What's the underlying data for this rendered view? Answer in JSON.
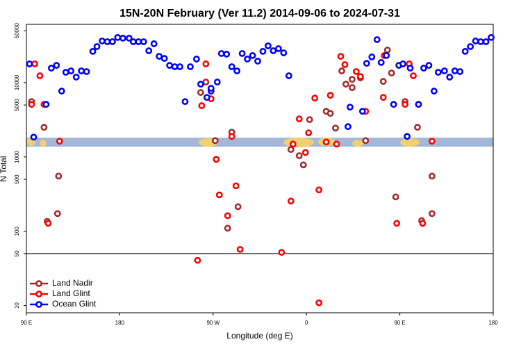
{
  "chart_data": {
    "type": "scatter",
    "title": "15N-20N February (Ver 11.2)   2014-09-06 to 2024-07-31",
    "xlabel": "Longitude (deg E)",
    "ylabel": "N Total",
    "log_y": true,
    "legend": "bottom-left",
    "hline": 50,
    "xlim": [
      90,
      540
    ],
    "xticks": [
      {
        "value": 90,
        "label": "90 E"
      },
      180,
      {
        "value": 270,
        "label": "90 W"
      },
      {
        "value": 360,
        "label": "0"
      },
      {
        "value": 450,
        "label": "90 E"
      },
      {
        "value": 540,
        "label": "180"
      }
    ],
    "ylim": [
      8,
      61000
    ],
    "yticks": [
      10,
      50,
      100,
      500,
      1000,
      5000,
      10000,
      50000
    ],
    "series": [
      {
        "name": "Land Nadir",
        "color": "#a52a2a",
        "x": [
          95,
          107,
          110,
          120,
          121,
          258,
          263,
          268,
          272,
          288,
          284,
          294,
          345,
          353,
          357,
          363,
          379,
          383,
          388,
          394,
          398,
          404,
          404,
          412,
          417,
          434,
          438,
          442,
          446,
          455,
          467,
          471,
          481,
          481
        ],
        "values": [
          5570,
          2510,
          136,
          173,
          553,
          7380,
          10200,
          8220,
          1660,
          2160,
          110,
          214,
          1260,
          1040,
          782,
          3180,
          4120,
          3860,
          2450,
          14400,
          9550,
          11100,
          8580,
          11600,
          1660,
          10400,
          27500,
          13500,
          290,
          5570,
          2510,
          139,
          173,
          553
        ]
      },
      {
        "name": "Land Glint",
        "color": "#ff0000",
        "x": [
          98,
          95,
          103,
          107,
          111,
          122,
          255,
          259,
          263,
          268,
          273,
          276,
          284,
          292,
          288,
          296,
          336,
          345,
          347,
          353,
          359,
          362,
          368,
          372,
          372,
          379,
          383,
          389,
          393,
          397,
          408,
          412,
          417,
          435,
          434,
          447,
          455,
          459,
          463,
          468,
          472,
          481
        ],
        "values": [
          17900,
          5100,
          12400,
          5100,
          128,
          1630,
          40.6,
          4900,
          17900,
          6070,
          929,
          309,
          162,
          409,
          1890,
          57,
          52,
          255,
          1490,
          3250,
          1150,
          2110,
          6210,
          360,
          10.9,
          1590,
          6760,
          1490,
          22600,
          17500,
          14100,
          12100,
          4120,
          23200,
          6340,
          128,
          5100,
          17900,
          12400,
          5100,
          128,
          1630
        ]
      },
      {
        "name": "Ocean Glint",
        "color": "#0000ff",
        "x": [
          93,
          97,
          109,
          114,
          119,
          124,
          128,
          133,
          138,
          143,
          148,
          154,
          158,
          163,
          168,
          173,
          178,
          183,
          189,
          193,
          198,
          203,
          208,
          213,
          218,
          223,
          228,
          233,
          238,
          243,
          248,
          254,
          258,
          264,
          268,
          268,
          274,
          278,
          283,
          288,
          293,
          298,
          303,
          308,
          313,
          318,
          323,
          328,
          333,
          338,
          343,
          400,
          402,
          414,
          418,
          423,
          428,
          432,
          437,
          444,
          449,
          453,
          457,
          460,
          468,
          473,
          478,
          483,
          487,
          493,
          498,
          503,
          508,
          513,
          518,
          523,
          528,
          533,
          538
        ],
        "values": [
          17900,
          1850,
          5100,
          15700,
          17100,
          7700,
          13800,
          14400,
          11900,
          14400,
          14100,
          26400,
          30600,
          36400,
          35600,
          35600,
          40600,
          39700,
          39700,
          35600,
          35600,
          35600,
          26900,
          33400,
          22600,
          21200,
          17100,
          16400,
          16400,
          5570,
          16400,
          20800,
          9550,
          6340,
          7700,
          8400,
          10200,
          24700,
          24200,
          16400,
          14400,
          24700,
          20800,
          23200,
          19500,
          26400,
          31300,
          26900,
          28700,
          25200,
          12400,
          2560,
          4690,
          4120,
          18200,
          22200,
          38000,
          18700,
          23200,
          5100,
          17100,
          17900,
          1890,
          15700,
          5100,
          15700,
          17100,
          7700,
          13800,
          14400,
          11900,
          14400,
          14100,
          26400,
          30600,
          36400,
          35600,
          35600,
          40600
        ]
      }
    ]
  }
}
